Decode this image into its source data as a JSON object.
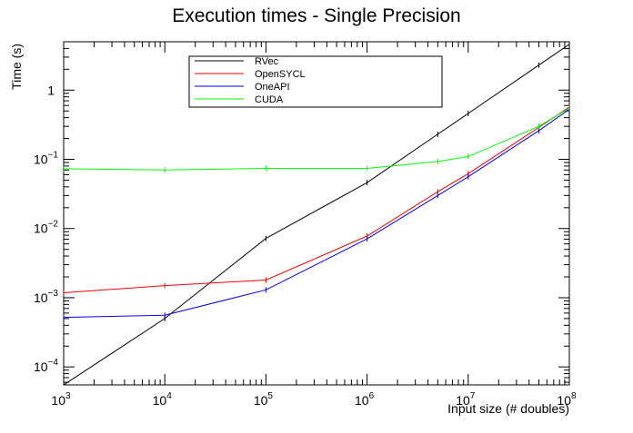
{
  "chart_data": {
    "type": "line",
    "title": "Execution times - Single Precision",
    "xlabel": "Input size (# doubles)",
    "ylabel": "Time (s)",
    "x_scale": "log",
    "y_scale": "log",
    "xlim": [
      1000,
      100000000
    ],
    "ylim": [
      5.5e-05,
      5
    ],
    "x_ticks": [
      {
        "value": 1000,
        "base": "10",
        "exp": "3"
      },
      {
        "value": 10000,
        "base": "10",
        "exp": "4"
      },
      {
        "value": 100000,
        "base": "10",
        "exp": "5"
      },
      {
        "value": 1000000,
        "base": "10",
        "exp": "6"
      },
      {
        "value": 10000000,
        "base": "10",
        "exp": "7"
      },
      {
        "value": 100000000,
        "base": "10",
        "exp": "8"
      }
    ],
    "y_ticks": [
      {
        "value": 0.0001,
        "base": "10",
        "exp": "−4"
      },
      {
        "value": 0.001,
        "base": "10",
        "exp": "−3"
      },
      {
        "value": 0.01,
        "base": "10",
        "exp": "−2"
      },
      {
        "value": 0.1,
        "base": "10",
        "exp": "−1"
      },
      {
        "value": 1,
        "base": "1",
        "exp": ""
      }
    ],
    "grid": false,
    "legend_position": "top-left",
    "x": [
      1000,
      10000,
      100000,
      1000000,
      5000000,
      10000000,
      50000000,
      100000000
    ],
    "series": [
      {
        "name": "RVec",
        "color": "#000000",
        "values": [
          5.5e-05,
          0.0005,
          0.0072,
          0.046,
          0.23,
          0.46,
          2.3,
          4.6
        ]
      },
      {
        "name": "OpenSYCL",
        "color": "#ff0000",
        "values": [
          0.00118,
          0.0015,
          0.0018,
          0.0078,
          0.034,
          0.062,
          0.29,
          0.57
        ]
      },
      {
        "name": "OneAPI",
        "color": "#0000ff",
        "values": [
          0.00052,
          0.00056,
          0.0013,
          0.0071,
          0.03,
          0.056,
          0.26,
          0.53
        ]
      },
      {
        "name": "CUDA",
        "color": "#00ff00",
        "values": [
          0.073,
          0.07,
          0.074,
          0.074,
          0.093,
          0.11,
          0.3,
          0.55
        ]
      }
    ]
  }
}
